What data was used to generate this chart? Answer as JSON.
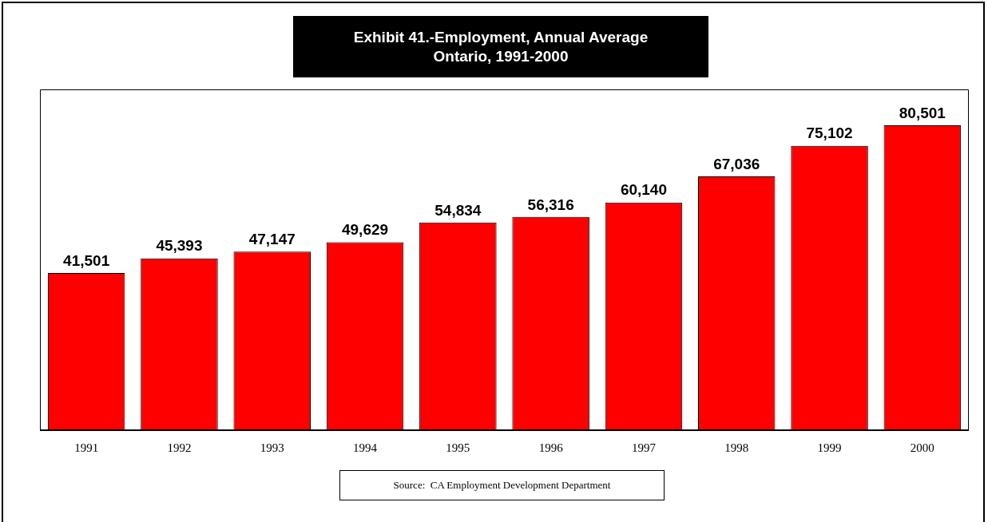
{
  "chart_data": {
    "type": "bar",
    "title": "Exhibit 41.-Employment, Annual Average\nOntario, 1991-2000",
    "categories": [
      "1991",
      "1992",
      "1993",
      "1994",
      "1995",
      "1996",
      "1997",
      "1998",
      "1999",
      "2000"
    ],
    "values": [
      41501,
      45393,
      47147,
      49629,
      54834,
      56316,
      60140,
      67036,
      75102,
      80501
    ],
    "color": "#ff0000",
    "value_labels": [
      "41,501",
      "45,393",
      "47,147",
      "49,629",
      "54,834",
      "56,316",
      "60,140",
      "67,036",
      "75,102",
      "80,501"
    ],
    "grid": false,
    "legend": false,
    "annotations": [
      "Source:  CA Employment Development Department"
    ]
  }
}
